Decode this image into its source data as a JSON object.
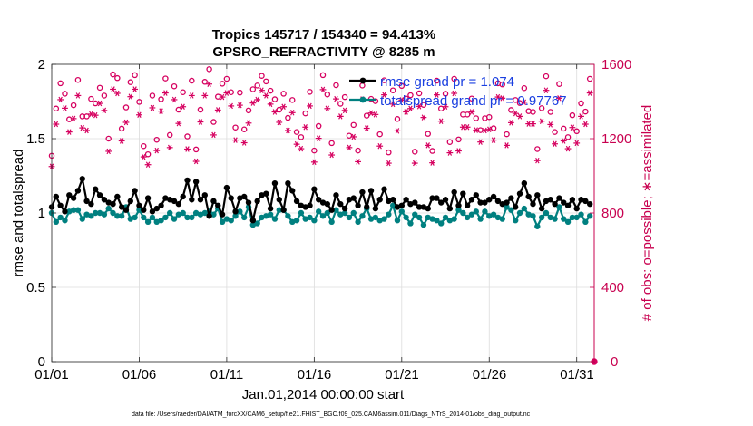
{
  "chart_data": {
    "type": "line",
    "title": "Tropics 145717 / 154340 = 94.413%",
    "subtitle": "GPSRO_REFRACTIVITY @ 8285 m",
    "xlabel": "Jan.01,2014 00:00:00 start",
    "ylabel": "rmse and totalspread",
    "ylabel_right": "# of obs: o=possible; ∗=assimilated",
    "xlim": [
      1,
      32
    ],
    "ylim": [
      0,
      2
    ],
    "ylim_right": [
      0,
      1600
    ],
    "x_ticks": [
      {
        "value": 1,
        "label": "01/01"
      },
      {
        "value": 6,
        "label": "01/06"
      },
      {
        "value": 11,
        "label": "01/11"
      },
      {
        "value": 16,
        "label": "01/16"
      },
      {
        "value": 21,
        "label": "01/21"
      },
      {
        "value": 26,
        "label": "01/26"
      },
      {
        "value": 31,
        "label": "01/31"
      }
    ],
    "y_ticks": [
      "0",
      "0.5",
      "1",
      "1.5",
      "2"
    ],
    "y_ticks_right": [
      "0",
      "400",
      "800",
      "1200",
      "1600"
    ],
    "legend": [
      {
        "label": "rmse grand pr = 1.074",
        "color": "#000000"
      },
      {
        "label": "totalspread grand pr = 0.97767",
        "color": "#008080"
      }
    ],
    "colors": {
      "rmse": "#000000",
      "spread": "#008080",
      "obs": "#d6005f",
      "grid": "#dcdcdc"
    },
    "n_points": 124,
    "x_start": 1,
    "x_step": 0.25,
    "series": [
      {
        "name": "rmse",
        "values": [
          1.04,
          1.11,
          1.05,
          1.01,
          1.12,
          1.1,
          1.15,
          1.23,
          1.08,
          1.06,
          1.16,
          1.12,
          1.09,
          1.07,
          1.06,
          1.11,
          1.04,
          1.02,
          1.08,
          1.15,
          1.05,
          1.02,
          1.1,
          1.01,
          1.03,
          1.05,
          1.1,
          1.09,
          1.08,
          1.06,
          1.11,
          1.22,
          1.09,
          1.21,
          1.09,
          1.12,
          0.98,
          1.08,
          1.05,
          0.99,
          1.17,
          1.1,
          1.01,
          1.1,
          1.11,
          1.07,
          0.95,
          1.08,
          1.12,
          1.13,
          1.03,
          1.2,
          1.09,
          1.02,
          1.2,
          1.15,
          1.08,
          1.05,
          1.04,
          1.05,
          1.16,
          1.09,
          1.07,
          1.06,
          1.02,
          1.12,
          1.06,
          1.03,
          1.09,
          1.1,
          1.05,
          1.14,
          1.04,
          1.15,
          1.03,
          1.09,
          1.16,
          1.08,
          1.09,
          1.04,
          1.05,
          1.09,
          1.06,
          1.07,
          1.04,
          1.04,
          1.03,
          1.1,
          1.1,
          1.07,
          1.09,
          1.03,
          1.14,
          1.05,
          1.13,
          1.05,
          1.09,
          1.12,
          1.07,
          1.07,
          1.09,
          1.11,
          1.08,
          1.06,
          1.07,
          1.1,
          1.04,
          1.13,
          1.2,
          1.11,
          1.06,
          1.12,
          1.03,
          1.08,
          1.09,
          1.06,
          1.1,
          1.07,
          1.05,
          1.09,
          1.03,
          1.09,
          1.08,
          1.06
        ]
      },
      {
        "name": "totalspread",
        "values": [
          1.0,
          0.94,
          0.97,
          0.95,
          1.01,
          1.02,
          1.02,
          0.96,
          0.99,
          0.98,
          1.0,
          1.0,
          0.99,
          1.03,
          1.0,
          0.98,
          0.98,
          1.04,
          0.96,
          0.97,
          1.02,
          0.97,
          0.94,
          0.97,
          0.94,
          0.95,
          0.97,
          1.0,
          0.96,
          0.99,
          1.0,
          0.97,
          0.97,
          1.0,
          0.99,
          1.0,
          1.01,
          0.99,
          1.03,
          0.94,
          0.96,
          0.95,
          0.98,
          1.01,
          0.97,
          1.04,
          0.92,
          0.93,
          0.97,
          0.98,
          0.99,
          0.96,
          1.02,
          1.02,
          0.98,
          0.94,
          0.95,
          1.0,
          0.96,
          0.97,
          0.95,
          1.01,
          0.98,
          1.0,
          0.94,
          1.02,
          0.99,
          1.0,
          0.97,
          1.0,
          0.94,
          0.98,
          1.03,
          0.96,
          0.97,
          0.95,
          0.96,
          0.99,
          1.05,
          0.95,
          1.01,
          0.97,
          0.93,
          0.99,
          0.97,
          0.92,
          0.97,
          0.96,
          0.95,
          0.93,
          0.97,
          0.95,
          0.96,
          1.02,
          1.0,
          0.97,
          0.99,
          1.01,
          0.96,
          1.01,
          0.98,
          0.99,
          0.97,
          0.96,
          1.04,
          1.02,
          0.95,
          1.0,
          1.03,
          0.99,
          0.98,
          0.91,
          0.97,
          1.0,
          0.97,
          0.96,
          1.04,
          0.96,
          0.94,
          0.97,
          0.97,
          0.99,
          0.94,
          0.98
        ]
      },
      {
        "name": "obs_possible",
        "axis": "right",
        "marker": "o",
        "values": [
          1108,
          1362,
          1498,
          1442,
          1304,
          1380,
          1516,
          1320,
          1320,
          1414,
          1390,
          1474,
          1432,
          1200,
          1546,
          1526,
          1254,
          1368,
          1504,
          1542,
          1398,
          1160,
          1116,
          1432,
          1194,
          1412,
          1524,
          1220,
          1482,
          1356,
          1450,
          1212,
          1512,
          1142,
          1356,
          1506,
          1574,
          1290,
          1426,
          1496,
          1522,
          1450,
          1260,
          1448,
          1250,
          1352,
          1466,
          1486,
          1538,
          1508,
          1458,
          1412,
          1356,
          1442,
          1312,
          1408,
          1236,
          1208,
          1336,
          1452,
          1136,
          1268,
          1542,
          1438,
          1176,
          1488,
          1388,
          1424,
          1216,
          1274,
          1136,
          1486,
          1324,
          1414,
          1402,
          1224,
          1514,
          1126,
          1460,
          1306,
          1484,
          1416,
          1434,
          1130,
          1444,
          1382,
          1226,
          1134,
          1512,
          1362,
          1442,
          1182,
          1522,
          1196,
          1330,
          1330,
          1416,
          1310,
          1246,
          1310,
          1316,
          1256,
          1498,
          1492,
          1224,
          1354,
          1408,
          1392,
          1472,
          1348,
          1344,
          1144,
          1364,
          1536,
          1344,
          1236,
          1494,
          1254,
          1208,
          1326,
          1240,
          1390,
          1346,
          1522
        ]
      },
      {
        "name": "obs_assimilated",
        "axis": "right",
        "marker": "*",
        "values": [
          1050,
          1278,
          1410,
          1364,
          1236,
          1308,
          1432,
          1258,
          1244,
          1332,
          1326,
          1390,
          1352,
          1132,
          1466,
          1444,
          1188,
          1288,
          1426,
          1466,
          1328,
          1102,
          1060,
          1366,
          1136,
          1348,
          1446,
          1152,
          1410,
          1282,
          1372,
          1144,
          1432,
          1078,
          1290,
          1432,
          1494,
          1220,
          1354,
          1424,
          1446,
          1376,
          1192,
          1380,
          1178,
          1284,
          1392,
          1410,
          1460,
          1432,
          1386,
          1344,
          1288,
          1372,
          1244,
          1340,
          1170,
          1146,
          1262,
          1376,
          1074,
          1202,
          1464,
          1362,
          1112,
          1414,
          1320,
          1352,
          1152,
          1210,
          1076,
          1412,
          1256,
          1338,
          1330,
          1160,
          1436,
          1068,
          1386,
          1242,
          1408,
          1344,
          1362,
          1068,
          1374,
          1314,
          1164,
          1070,
          1436,
          1294,
          1372,
          1124,
          1444,
          1134,
          1262,
          1262,
          1344,
          1246,
          1182,
          1244,
          1250,
          1192,
          1424,
          1418,
          1164,
          1286,
          1336,
          1320,
          1396,
          1280,
          1280,
          1082,
          1294,
          1460,
          1276,
          1172,
          1418,
          1188,
          1146,
          1260,
          1176,
          1320,
          1278,
          1446
        ]
      }
    ]
  },
  "footer": {
    "data_file": "data file: /Users/raeder/DAI/ATM_forcXX/CAM6_setup/f.e21.FHIST_BGC.f09_025.CAM6assim.011/Diags_NTrS_2014-01/obs_diag_output.nc"
  }
}
